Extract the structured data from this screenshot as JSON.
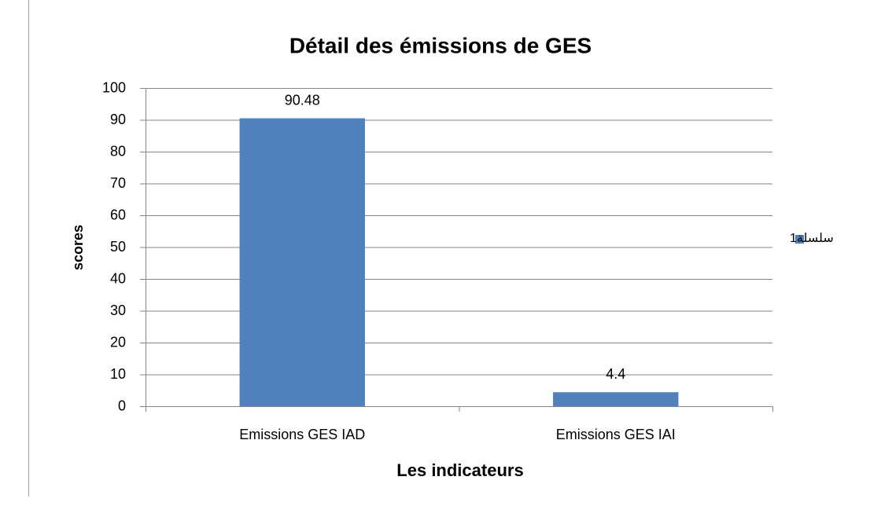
{
  "chart_data": {
    "type": "bar",
    "title": "Détail des émissions de GES",
    "x_label": "Les indicateurs",
    "y_label": "scores",
    "categories": [
      "Emissions GES IAD",
      "Emissions GES IAI"
    ],
    "series": [
      {
        "name": "سلسلة1",
        "color": "#4f81bd",
        "values": [
          90.48,
          4.4
        ]
      }
    ],
    "ylim": [
      0,
      100
    ],
    "yticks": [
      0,
      10,
      20,
      30,
      40,
      50,
      60,
      70,
      80,
      90,
      100
    ],
    "grid": true,
    "legend": "right"
  }
}
